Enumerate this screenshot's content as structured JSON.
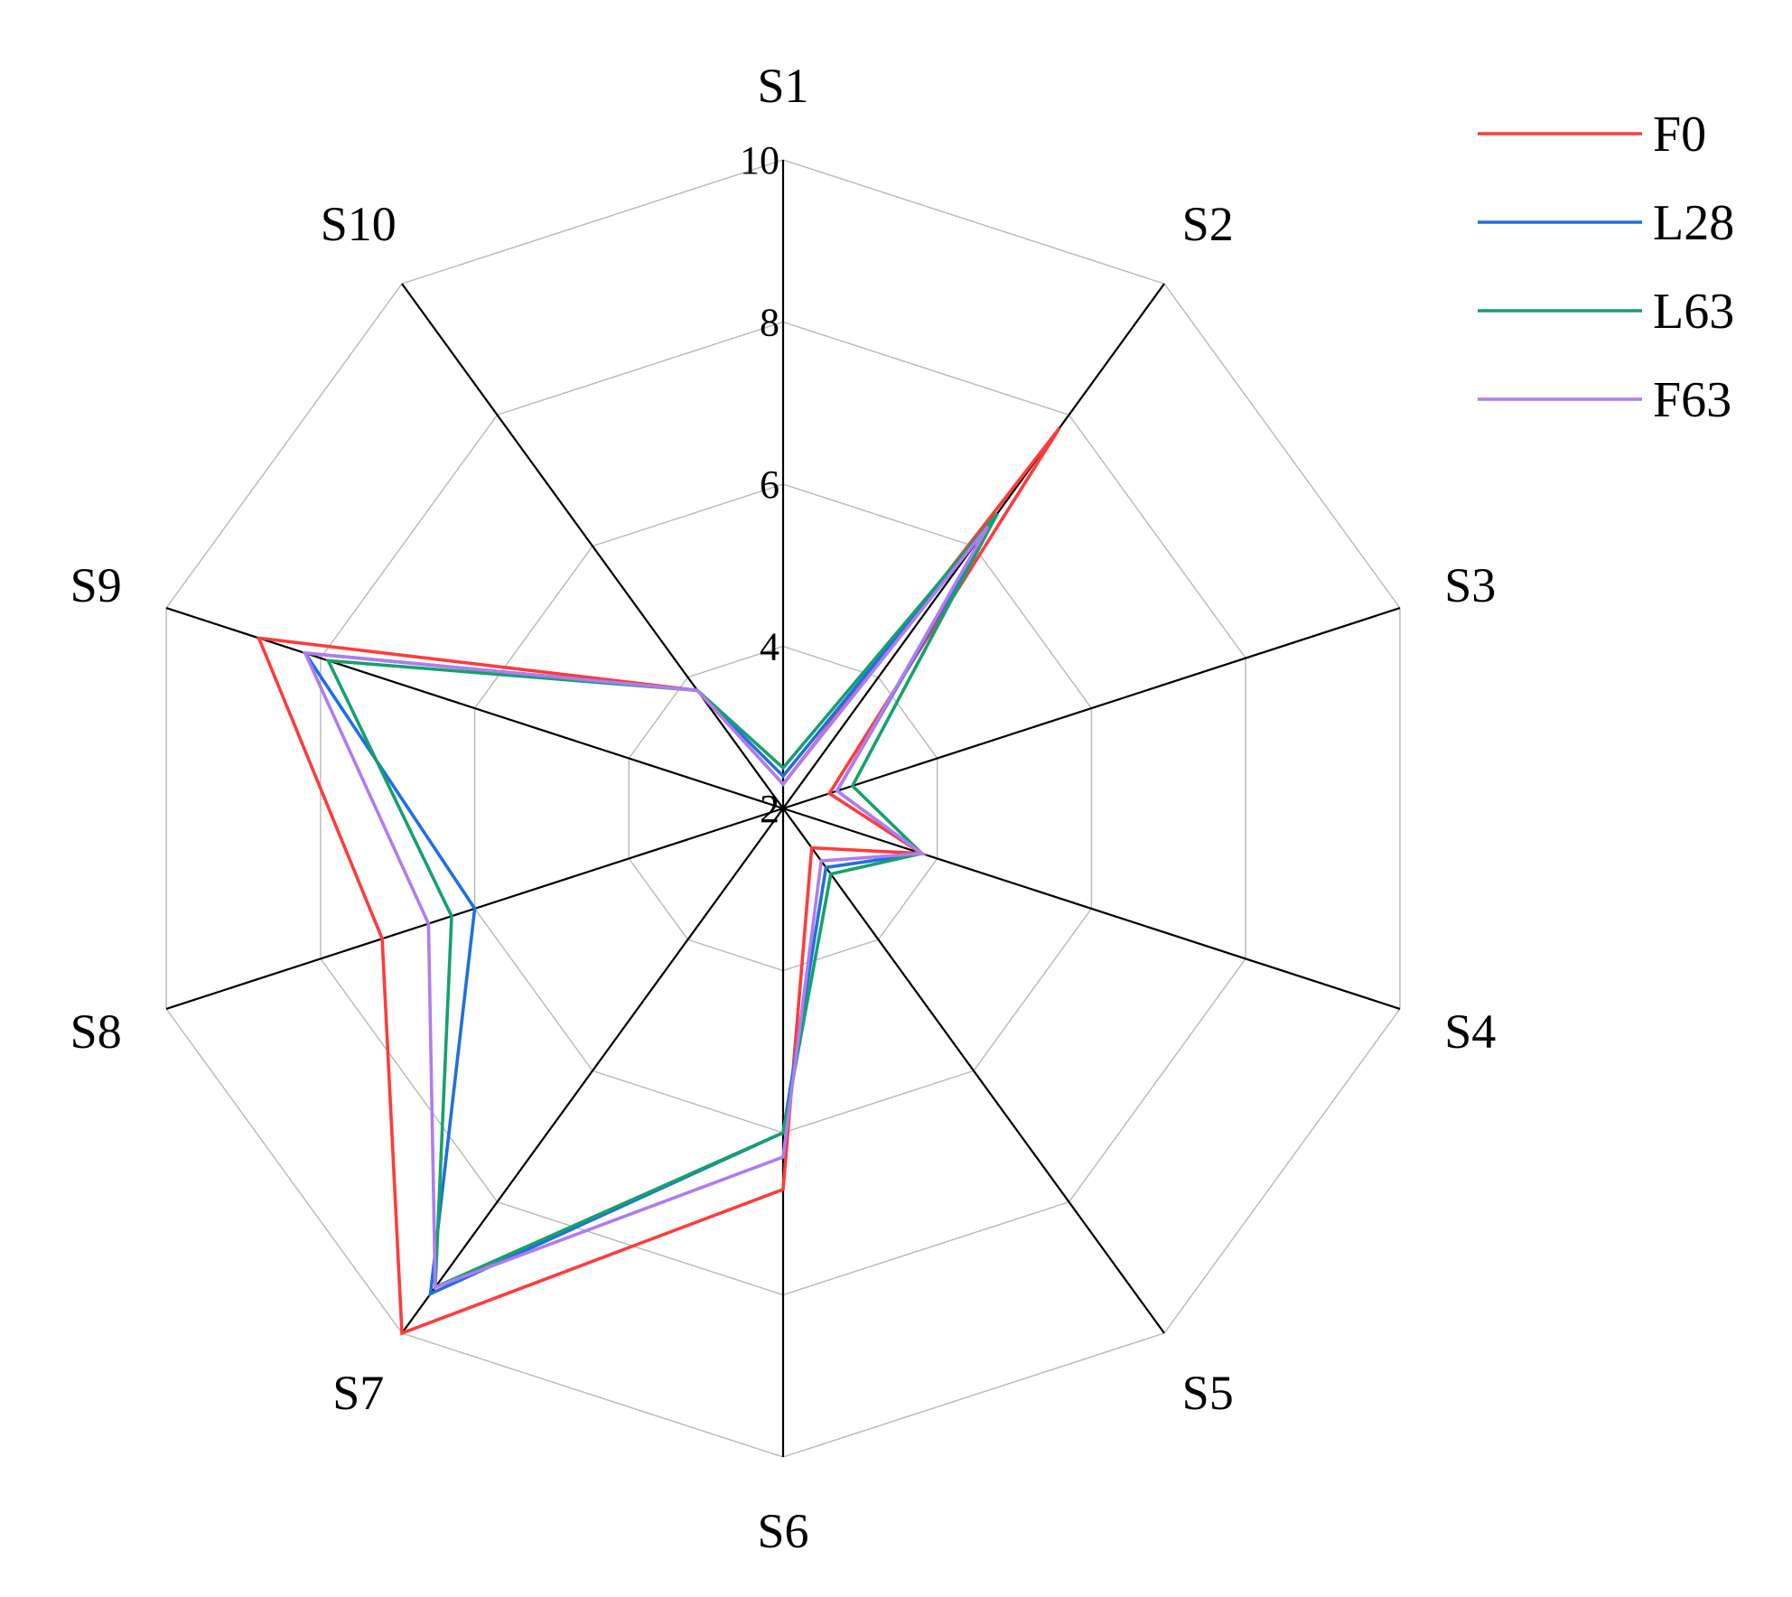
{
  "chart_data": {
    "type": "radar",
    "categories": [
      "S1",
      "S2",
      "S3",
      "S4",
      "S5",
      "S6",
      "S7",
      "S8",
      "S9",
      "S10"
    ],
    "rlim": [
      2,
      10
    ],
    "rticks": [
      "2",
      "4",
      "6",
      "8",
      "10"
    ],
    "grid": true,
    "legend_position": "top-right",
    "series": [
      {
        "name": "F0",
        "color": "#ff3b3b",
        "values": [
          2.3,
          7.8,
          2.6,
          3.8,
          2.6,
          6.7,
          10.0,
          7.2,
          8.8,
          3.8
        ]
      },
      {
        "name": "L28",
        "color": "#1f6fe0",
        "values": [
          2.4,
          6.5,
          2.7,
          3.8,
          2.9,
          6.0,
          9.4,
          6.0,
          8.2,
          3.8
        ]
      },
      {
        "name": "L63",
        "color": "#17a06c",
        "values": [
          2.5,
          6.5,
          2.9,
          3.8,
          3.0,
          6.0,
          9.3,
          6.3,
          7.9,
          3.8
        ]
      },
      {
        "name": "F63",
        "color": "#b07cf0",
        "values": [
          2.3,
          6.3,
          2.7,
          3.8,
          2.8,
          6.3,
          9.3,
          6.6,
          8.2,
          3.8
        ]
      }
    ]
  }
}
